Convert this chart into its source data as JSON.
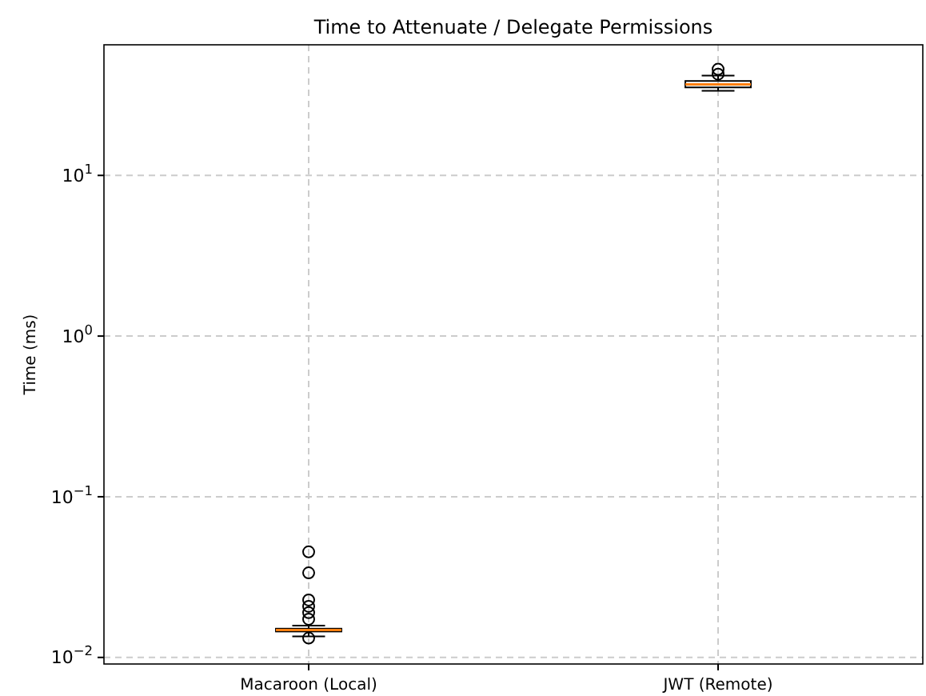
{
  "chart_data": {
    "type": "box",
    "title": "Time to Attenuate / Delegate Permissions",
    "ylabel": "Time (ms)",
    "categories": [
      "Macaroon (Local)",
      "JWT (Remote)"
    ],
    "boxes": [
      {
        "low": 0.0135,
        "q1": 0.0145,
        "median": 0.0148,
        "q3": 0.0151,
        "high": 0.0158,
        "outliers": [
          0.0454,
          0.0336,
          0.0228,
          0.0208,
          0.019,
          0.0173,
          0.0132
        ]
      },
      {
        "low": 33.6,
        "q1": 35.3,
        "median": 36.9,
        "q3": 38.7,
        "high": 41.8,
        "outliers": [
          45.8,
          42.7
        ]
      }
    ],
    "log": true,
    "ylim": [
      0.0091,
      65
    ],
    "yticks": [
      {
        "value": 0.01,
        "label": "10$^{−2}$"
      },
      {
        "value": 0.1,
        "label": "10$^{−1}$"
      },
      {
        "value": 1,
        "label": "10$^{0}$"
      },
      {
        "value": 10,
        "label": "10$^{1}$"
      }
    ],
    "grid": true
  }
}
